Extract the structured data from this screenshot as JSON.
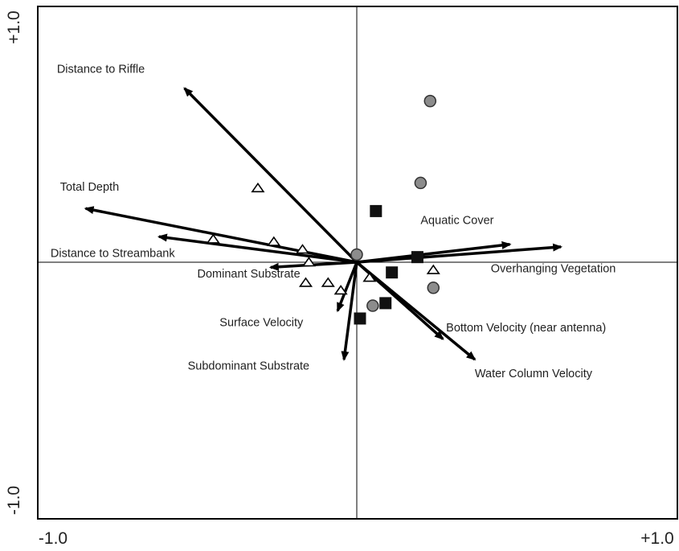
{
  "chart_data": {
    "type": "scatter",
    "title": "",
    "x_range": [
      -1.0,
      1.0
    ],
    "y_range": [
      -1.0,
      1.0
    ],
    "tick_labels": {
      "x_min": "-1.0",
      "x_max": "+1.0",
      "y_min": "-1.0",
      "y_max": "+1.0"
    },
    "grid": false,
    "zero_lines": true,
    "colors": {
      "arrows": "#000000",
      "circles_fill": "#8c8c8c",
      "squares_fill": "#111111",
      "triangles_fill": "#ffffff",
      "frame": "#000000"
    },
    "vectors": [
      {
        "label": "Distance to Riffle",
        "x": -0.54,
        "y": 0.68,
        "label_x": -0.94,
        "label_y": 0.74
      },
      {
        "label": "Total Depth",
        "x": -0.85,
        "y": 0.21,
        "label_x": -0.93,
        "label_y": 0.28
      },
      {
        "label": "Distance to Streambank",
        "x": -0.62,
        "y": 0.1,
        "label_x": -0.96,
        "label_y": 0.02
      },
      {
        "label": "Dominant Substrate",
        "x": -0.27,
        "y": -0.02,
        "label_x": -0.5,
        "label_y": -0.06
      },
      {
        "label": "Surface Velocity",
        "x": -0.06,
        "y": -0.19,
        "label_x": -0.43,
        "label_y": -0.25
      },
      {
        "label": "Subdominant Substrate",
        "x": -0.04,
        "y": -0.38,
        "label_x": -0.53,
        "label_y": -0.42
      },
      {
        "label": "Aquatic Cover",
        "x": 0.48,
        "y": 0.07,
        "label_x": 0.2,
        "label_y": 0.15
      },
      {
        "label": "Overhanging Vegetation",
        "x": 0.64,
        "y": 0.06,
        "label_x": 0.42,
        "label_y": -0.04
      },
      {
        "label": "Bottom Velocity (near antenna)",
        "x": 0.27,
        "y": -0.3,
        "label_x": 0.28,
        "label_y": -0.27
      },
      {
        "label": "Water Column Velocity",
        "x": 0.37,
        "y": -0.38,
        "label_x": 0.37,
        "label_y": -0.45
      }
    ],
    "series": [
      {
        "marker": "circle",
        "points": [
          {
            "x": 0.23,
            "y": 0.63
          },
          {
            "x": 0.2,
            "y": 0.31
          },
          {
            "x": 0.0,
            "y": 0.03
          },
          {
            "x": 0.24,
            "y": -0.1
          },
          {
            "x": 0.05,
            "y": -0.17
          }
        ]
      },
      {
        "marker": "square",
        "points": [
          {
            "x": 0.06,
            "y": 0.2
          },
          {
            "x": 0.19,
            "y": 0.02
          },
          {
            "x": 0.11,
            "y": -0.04
          },
          {
            "x": 0.09,
            "y": -0.16
          },
          {
            "x": 0.01,
            "y": -0.22
          }
        ]
      },
      {
        "marker": "triangle",
        "points": [
          {
            "x": -0.31,
            "y": 0.29
          },
          {
            "x": -0.45,
            "y": 0.09
          },
          {
            "x": -0.26,
            "y": 0.08
          },
          {
            "x": -0.17,
            "y": 0.05
          },
          {
            "x": -0.15,
            "y": 0.0
          },
          {
            "x": -0.16,
            "y": -0.08
          },
          {
            "x": -0.09,
            "y": -0.08
          },
          {
            "x": -0.05,
            "y": -0.11
          },
          {
            "x": 0.04,
            "y": -0.06
          },
          {
            "x": 0.24,
            "y": -0.03
          }
        ]
      }
    ]
  }
}
